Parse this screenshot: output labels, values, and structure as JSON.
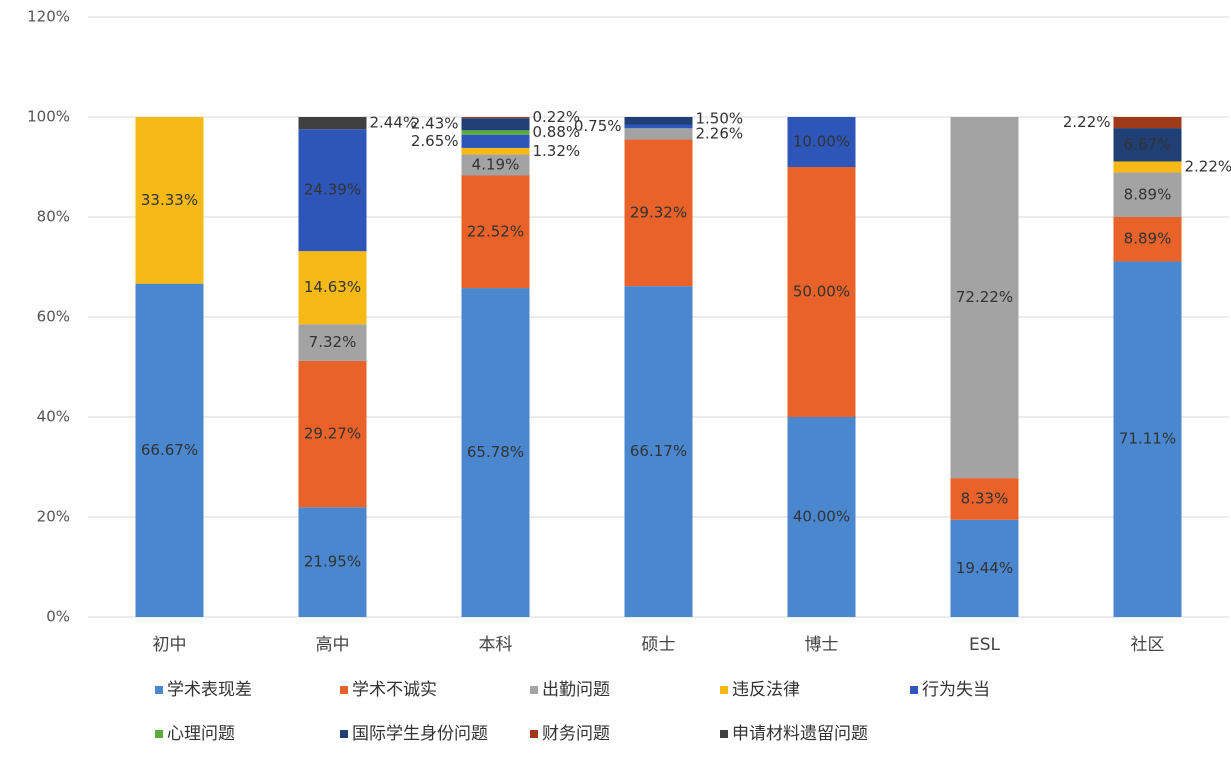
{
  "chart_data": {
    "type": "stacked_bar",
    "categories": [
      "初中",
      "高中",
      "本科",
      "硕士",
      "博士",
      "ESL",
      "社区"
    ],
    "series": [
      {
        "name": "学术表现差",
        "color": "#4a87cf",
        "values": [
          66.67,
          21.95,
          65.78,
          66.17,
          40.0,
          19.44,
          71.11
        ],
        "value_labels": [
          "66.67%",
          "21.95%",
          "65.78%",
          "66.17%",
          "40.00%",
          "19.44%",
          "71.11%"
        ]
      },
      {
        "name": "学术不诚实",
        "color": "#e8622a",
        "values": [
          null,
          29.27,
          22.52,
          29.32,
          50.0,
          8.33,
          8.89
        ],
        "value_labels": [
          null,
          "29.27%",
          "22.52%",
          "29.32%",
          "50.00%",
          "8.33%",
          "8.89%"
        ]
      },
      {
        "name": "出勤问题",
        "color": "#a3a3a3",
        "values": [
          null,
          7.32,
          4.19,
          2.26,
          null,
          72.22,
          8.89
        ],
        "value_labels": [
          null,
          "7.32%",
          "4.19%",
          "2.26%",
          null,
          "72.22%",
          "8.89%"
        ]
      },
      {
        "name": "违反法律",
        "color": "#f6b916",
        "values": [
          33.33,
          14.63,
          1.32,
          null,
          null,
          null,
          2.22
        ],
        "value_labels": [
          "33.33%",
          "14.63%",
          "1.32%",
          null,
          null,
          null,
          "2.22%"
        ]
      },
      {
        "name": "行为失当",
        "color": "#2e55b8",
        "values": [
          null,
          24.39,
          2.65,
          0.75,
          10.0,
          null,
          null
        ],
        "value_labels": [
          null,
          "24.39%",
          "2.65%",
          "0.75%",
          "10.00%",
          null,
          null
        ]
      },
      {
        "name": "心理问题",
        "color": "#5aab3d",
        "values": [
          null,
          null,
          0.88,
          null,
          null,
          null,
          null
        ],
        "value_labels": [
          null,
          null,
          "0.88%",
          null,
          null,
          null,
          null
        ]
      },
      {
        "name": "国际学生身份问题",
        "color": "#1f3f75",
        "values": [
          null,
          null,
          2.43,
          1.5,
          null,
          null,
          6.67
        ],
        "value_labels": [
          null,
          null,
          "2.43%",
          "1.50%",
          null,
          null,
          "6.67%"
        ]
      },
      {
        "name": "财务问题",
        "color": "#9e3a1a",
        "values": [
          null,
          null,
          0.22,
          null,
          null,
          null,
          2.22
        ],
        "value_labels": [
          null,
          null,
          "0.22%",
          null,
          null,
          null,
          "2.22%"
        ]
      },
      {
        "name": "申请材料遗留问题",
        "color": "#404040",
        "values": [
          null,
          2.44,
          null,
          null,
          null,
          null,
          null
        ],
        "value_labels": [
          null,
          "2.44%",
          null,
          null,
          null,
          null,
          null
        ]
      }
    ],
    "ylim": [
      0,
      120
    ],
    "yticks": [
      {
        "value": 0,
        "label": "0%"
      },
      {
        "value": 20,
        "label": "20%"
      },
      {
        "value": 40,
        "label": "40%"
      },
      {
        "value": 60,
        "label": "60%"
      },
      {
        "value": 80,
        "label": "80%"
      },
      {
        "value": 100,
        "label": "100%"
      },
      {
        "value": 120,
        "label": "120%"
      }
    ],
    "grid": true,
    "legend": "bottom"
  }
}
